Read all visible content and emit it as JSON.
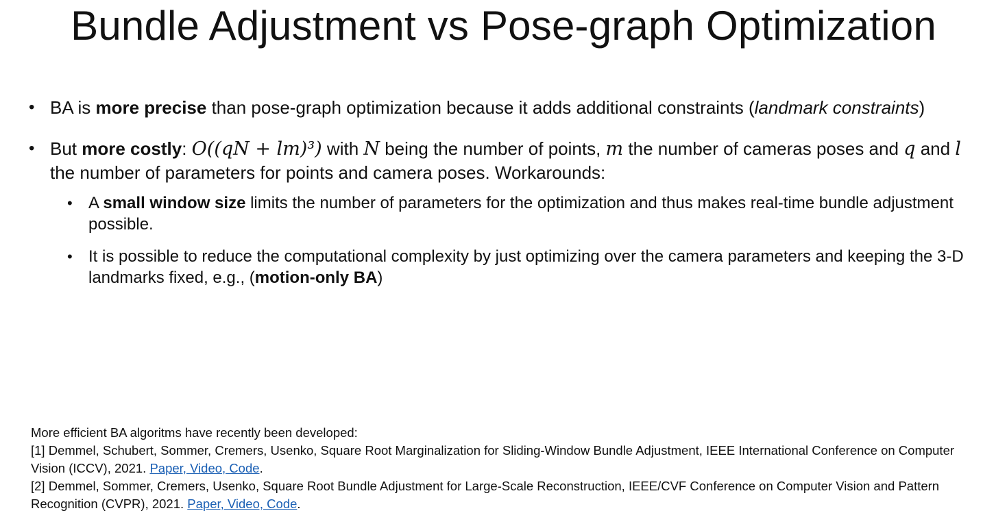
{
  "slide": {
    "title": "Bundle Adjustment vs Pose-graph Optimization"
  },
  "bullets": {
    "b1": {
      "t1": "BA is ",
      "bold1": "more precise",
      "t2": " than pose-graph optimization because it adds additional constraints (",
      "italic1": "landmark constraints",
      "t3": ")"
    },
    "b2": {
      "t1": "But ",
      "bold1": "more costly",
      "t2": ": ",
      "formula": "O((qN + lm)³)",
      "t3": " with ",
      "var_n": "N",
      "t4": " being the number of points, ",
      "var_m": "m",
      "t5": " the number of cameras poses and ",
      "var_q": "q",
      "t6": " and ",
      "var_l": "l",
      "t7": " the number of parameters for points and camera poses. Workarounds:",
      "sub": [
        {
          "t1": "A ",
          "bold1": "small window size",
          "t2": " limits the number of parameters for the optimization and thus makes real-time bundle adjustment possible."
        },
        {
          "t1": "It is possible to reduce the computational complexity by just optimizing over the camera parameters and keeping the 3-D landmarks fixed, e.g., (",
          "bold1": "motion-only BA",
          "t2": ")"
        }
      ]
    }
  },
  "refs": {
    "intro": "More efficient BA algoritms have recently been developed:",
    "r1_text": "[1] Demmel, Schubert, Sommer, Cremers, Usenko, Square Root Marginalization for Sliding-Window Bundle Adjustment, IEEE International Conference on Computer Vision (ICCV), 2021. ",
    "r1_link": "Paper, Video, Code",
    "r1_end": ".",
    "r2_text": "[2] Demmel, Sommer, Cremers, Usenko, Square Root Bundle Adjustment for Large-Scale Reconstruction, IEEE/CVF Conference on Computer Vision and Pattern Recognition (CVPR), 2021. ",
    "r2_link": "Paper, Video, Code",
    "r2_end": "."
  },
  "colors": {
    "text": "#111111",
    "link": "#1a5fb4",
    "background": "#ffffff"
  }
}
